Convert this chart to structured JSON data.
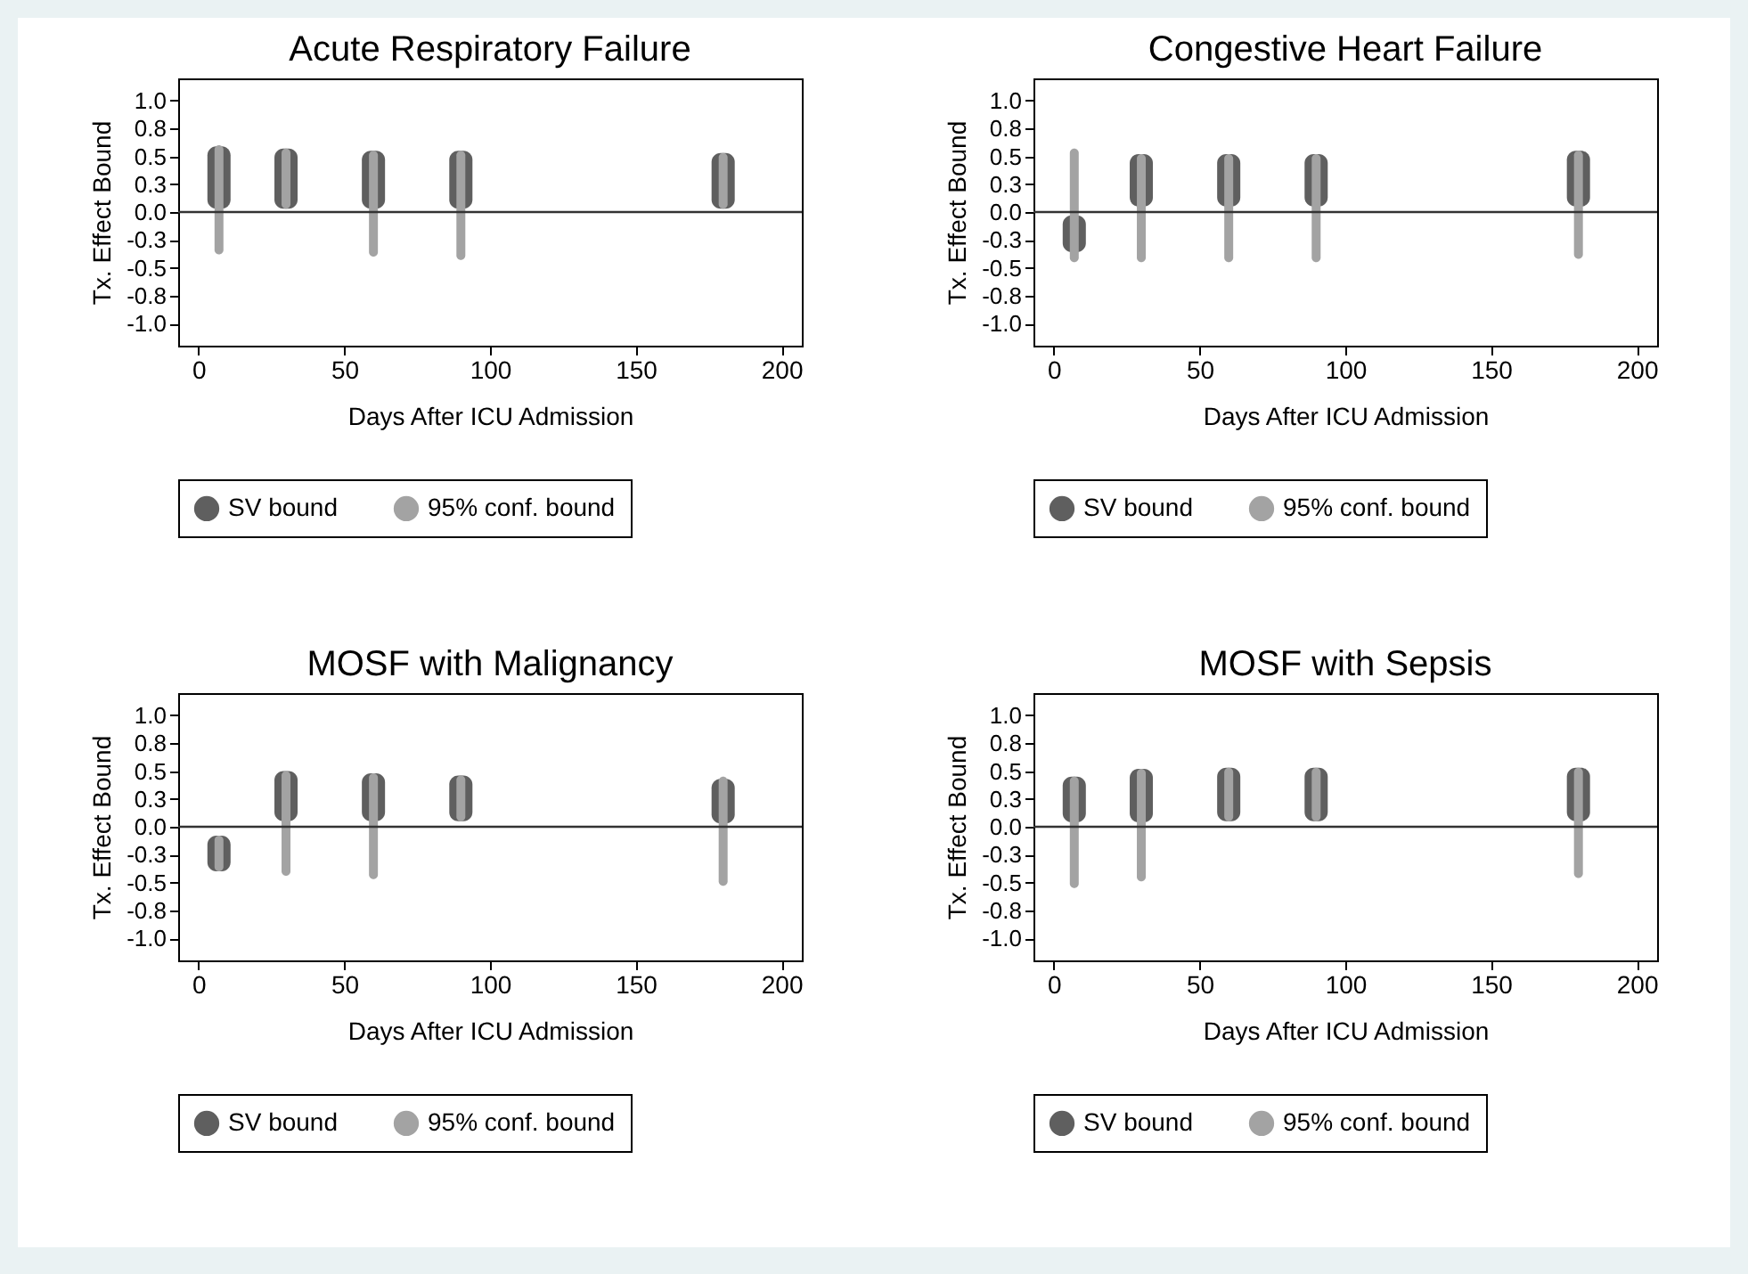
{
  "chart_data": [
    {
      "type": "bar",
      "title": "Acute Respiratory Failure",
      "xlabel": "Days After ICU Admission",
      "ylabel": "Tx. Effect Bound",
      "x": [
        7,
        30,
        60,
        90,
        180
      ],
      "xlim": [
        -7,
        207
      ],
      "xticks": [
        0,
        50,
        100,
        150,
        200
      ],
      "ylim": [
        -1.2,
        1.2
      ],
      "yticks": [
        {
          "value": 1,
          "label": "1.0"
        },
        {
          "value": 0.75,
          "label": "0.8"
        },
        {
          "value": 0.5,
          "label": "0.5"
        },
        {
          "value": 0.25,
          "label": "0.3"
        },
        {
          "value": 0,
          "label": "0.0"
        },
        {
          "value": -0.25,
          "label": "-0.3"
        },
        {
          "value": -0.5,
          "label": "-0.5"
        },
        {
          "value": -0.75,
          "label": "-0.8"
        },
        {
          "value": -1,
          "label": "-1.0"
        }
      ],
      "grid": false,
      "legend": "bottom",
      "ref_lines": [
        {
          "axis": "y",
          "value": 0,
          "color": "#333333"
        }
      ],
      "series": [
        {
          "name": "SV bound",
          "color": "#5f5f5f",
          "base": [
            0.03,
            0.03,
            0.03,
            0.03,
            0.03
          ],
          "values": [
            0.56,
            0.54,
            0.52,
            0.52,
            0.5
          ]
        },
        {
          "name": "95% conf. bound",
          "color": "#a3a3a3",
          "base": [
            -0.38,
            0.03,
            -0.4,
            -0.43,
            0.03
          ],
          "values": [
            0.98,
            0.54,
            0.95,
            0.98,
            0.5
          ]
        }
      ]
    },
    {
      "type": "bar",
      "title": "Congestive Heart Failure",
      "xlabel": "Days After ICU Admission",
      "ylabel": "Tx. Effect Bound",
      "x": [
        7,
        30,
        60,
        90,
        180
      ],
      "xlim": [
        -7,
        207
      ],
      "xticks": [
        0,
        50,
        100,
        150,
        200
      ],
      "ylim": [
        -1.2,
        1.2
      ],
      "yticks": [
        {
          "value": 1,
          "label": "1.0"
        },
        {
          "value": 0.75,
          "label": "0.8"
        },
        {
          "value": 0.5,
          "label": "0.5"
        },
        {
          "value": 0.25,
          "label": "0.3"
        },
        {
          "value": 0,
          "label": "0.0"
        },
        {
          "value": -0.25,
          "label": "-0.3"
        },
        {
          "value": -0.5,
          "label": "-0.5"
        },
        {
          "value": -0.75,
          "label": "-0.8"
        },
        {
          "value": -1,
          "label": "-1.0"
        }
      ],
      "grid": false,
      "legend": "bottom",
      "ref_lines": [
        {
          "axis": "y",
          "value": 0,
          "color": "#333333"
        }
      ],
      "series": [
        {
          "name": "SV bound",
          "color": "#5f5f5f",
          "base": [
            -0.36,
            0.05,
            0.05,
            0.05,
            0.05
          ],
          "values": [
            0.33,
            0.47,
            0.47,
            0.47,
            0.5
          ]
        },
        {
          "name": "95% conf. bound",
          "color": "#a3a3a3",
          "base": [
            -0.45,
            -0.45,
            -0.45,
            -0.45,
            -0.42
          ],
          "values": [
            1.02,
            0.97,
            0.97,
            0.97,
            0.97
          ]
        }
      ]
    },
    {
      "type": "bar",
      "title": "MOSF with Malignancy",
      "xlabel": "Days After ICU Admission",
      "ylabel": "Tx. Effect Bound",
      "x": [
        7,
        30,
        60,
        90,
        180
      ],
      "xlim": [
        -7,
        207
      ],
      "xticks": [
        0,
        50,
        100,
        150,
        200
      ],
      "ylim": [
        -1.2,
        1.2
      ],
      "yticks": [
        {
          "value": 1,
          "label": "1.0"
        },
        {
          "value": 0.75,
          "label": "0.8"
        },
        {
          "value": 0.5,
          "label": "0.5"
        },
        {
          "value": 0.25,
          "label": "0.3"
        },
        {
          "value": 0,
          "label": "0.0"
        },
        {
          "value": -0.25,
          "label": "-0.3"
        },
        {
          "value": -0.5,
          "label": "-0.5"
        },
        {
          "value": -0.75,
          "label": "-0.8"
        },
        {
          "value": -1,
          "label": "-1.0"
        }
      ],
      "grid": false,
      "legend": "bottom",
      "ref_lines": [
        {
          "axis": "y",
          "value": 0,
          "color": "#333333"
        }
      ],
      "series": [
        {
          "name": "SV bound",
          "color": "#5f5f5f",
          "base": [
            -0.4,
            0.05,
            0.05,
            0.05,
            0.03
          ],
          "values": [
            0.32,
            0.45,
            0.43,
            0.41,
            0.4
          ]
        },
        {
          "name": "95% conf. bound",
          "color": "#a3a3a3",
          "base": [
            -0.4,
            -0.44,
            -0.47,
            0.05,
            -0.53
          ],
          "values": [
            0.32,
            0.94,
            0.95,
            0.41,
            0.98
          ]
        }
      ]
    },
    {
      "type": "bar",
      "title": "MOSF with Sepsis",
      "xlabel": "Days After ICU Admission",
      "ylabel": "Tx. Effect Bound",
      "x": [
        7,
        30,
        60,
        90,
        180
      ],
      "xlim": [
        -7,
        207
      ],
      "xticks": [
        0,
        50,
        100,
        150,
        200
      ],
      "ylim": [
        -1.2,
        1.2
      ],
      "yticks": [
        {
          "value": 1,
          "label": "1.0"
        },
        {
          "value": 0.75,
          "label": "0.8"
        },
        {
          "value": 0.5,
          "label": "0.5"
        },
        {
          "value": 0.25,
          "label": "0.3"
        },
        {
          "value": 0,
          "label": "0.0"
        },
        {
          "value": -0.25,
          "label": "-0.3"
        },
        {
          "value": -0.5,
          "label": "-0.5"
        },
        {
          "value": -0.75,
          "label": "-0.8"
        },
        {
          "value": -1,
          "label": "-1.0"
        }
      ],
      "grid": false,
      "legend": "bottom",
      "ref_lines": [
        {
          "axis": "y",
          "value": 0,
          "color": "#333333"
        }
      ],
      "series": [
        {
          "name": "SV bound",
          "color": "#5f5f5f",
          "base": [
            0.04,
            0.04,
            0.05,
            0.05,
            0.05
          ],
          "values": [
            0.41,
            0.48,
            0.48,
            0.48,
            0.48
          ]
        },
        {
          "name": "95% conf. bound",
          "color": "#a3a3a3",
          "base": [
            -0.55,
            -0.49,
            0.05,
            0.05,
            -0.46
          ],
          "values": [
            1.0,
            1.01,
            0.48,
            0.48,
            0.99
          ]
        }
      ]
    }
  ]
}
